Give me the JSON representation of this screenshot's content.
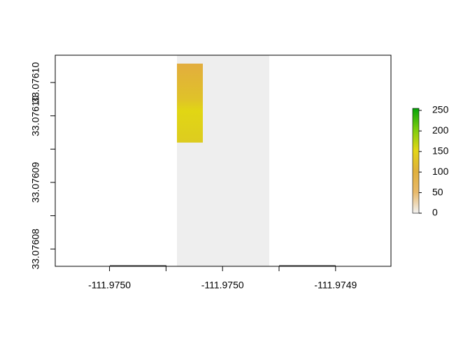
{
  "chart_data": {
    "type": "raster",
    "xlim": [
      -111.975098,
      -111.974801
    ],
    "ylim": [
      33.0760774,
      33.0761091
    ],
    "xticks": [
      {
        "value": -111.97505,
        "label": "-111.9750"
      },
      {
        "value": -111.975,
        "label": null
      },
      {
        "value": -111.97495,
        "label": "-111.9750"
      },
      {
        "value": -111.9749,
        "label": null
      },
      {
        "value": -111.97485,
        "label": "-111.9749"
      }
    ],
    "yticks": [
      {
        "value": 33.07608,
        "label": "33.07608"
      },
      {
        "value": 33.076085,
        "label": null
      },
      {
        "value": 33.07609,
        "label": "33.07609"
      },
      {
        "value": 33.076095,
        "label": null
      },
      {
        "value": 33.0761,
        "label": "33.07610"
      },
      {
        "value": 33.076105,
        "label": "33.07610"
      }
    ],
    "colorbar": {
      "lim": [
        0,
        255
      ],
      "ticks": [
        0,
        50,
        100,
        150,
        200,
        250
      ],
      "colors": [
        "#f2f2f2",
        "#e8b96a",
        "#e0b03c",
        "#e3d615",
        "#7ccd0c",
        "#05a30a"
      ]
    }
  }
}
